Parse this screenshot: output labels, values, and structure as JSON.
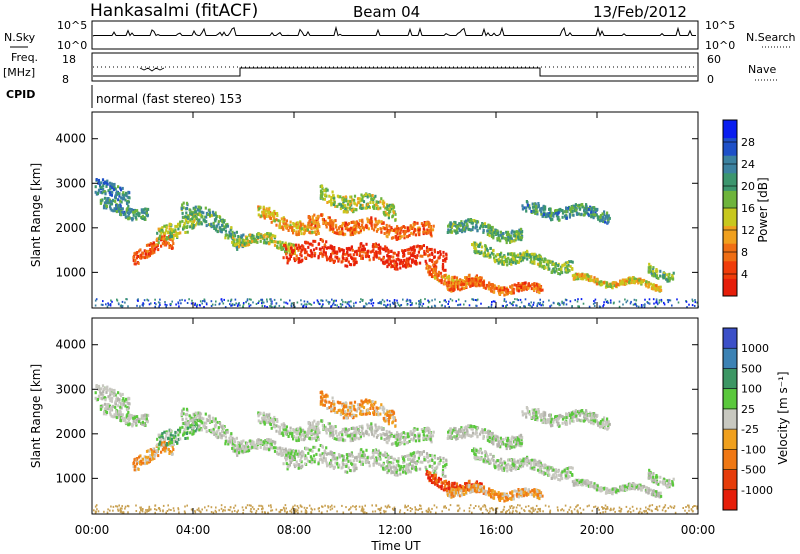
{
  "header": {
    "station": "Hankasalmi (fitACF)",
    "beam": "Beam 04",
    "date": "13/Feb/2012"
  },
  "noise_panel": {
    "left_label": "N.Sky",
    "ticks": [
      "10^5",
      "10^0"
    ],
    "right_label": "N.Search"
  },
  "freq_panel": {
    "left_label_top": "Freq.",
    "left_label_unit": "[MHz]",
    "left_ticks": [
      "18",
      "8"
    ],
    "right_ticks": [
      "60",
      "0"
    ],
    "right_label": "Nave"
  },
  "cpid_panel": {
    "left_label": "CPID",
    "program": "normal (fast stereo) 153"
  },
  "chart_data": [
    {
      "type": "heatmap",
      "title": "",
      "ylabel": "Slant Range [km]",
      "xlabel": "",
      "x_ticks": [
        "00:00",
        "04:00",
        "08:00",
        "12:00",
        "16:00",
        "20:00",
        "00:00"
      ],
      "y_ticks": [
        "1000",
        "2000",
        "3000",
        "4000"
      ],
      "ylim": [
        200,
        4600
      ],
      "colorbar": {
        "label": "Power [dB]",
        "ticks": [
          "4",
          "8",
          "12",
          "16",
          "20",
          "24",
          "28"
        ],
        "range": [
          0,
          32
        ],
        "colors": [
          "#0a1ef0",
          "#1e50c8",
          "#3c82a0",
          "#3c966e",
          "#6eb43c",
          "#c8c81e",
          "#f0a01e",
          "#f06e14",
          "#f03c0a",
          "#e61e0a"
        ]
      }
    },
    {
      "type": "heatmap",
      "title": "",
      "ylabel": "Slant Range [km]",
      "xlabel": "Time UT",
      "x_ticks": [
        "00:00",
        "04:00",
        "08:00",
        "12:00",
        "16:00",
        "20:00",
        "00:00"
      ],
      "y_ticks": [
        "1000",
        "2000",
        "3000",
        "4000"
      ],
      "ylim": [
        200,
        4600
      ],
      "colorbar": {
        "label": "Velocity [m s⁻¹]",
        "ticks": [
          "1000",
          "500",
          "100",
          "25",
          "-25",
          "-100",
          "-500",
          "-1000"
        ],
        "range": [
          -1000,
          1000
        ],
        "colors": [
          "#3c50c8",
          "#3c82b4",
          "#3c9664",
          "#5ac83c",
          "#c8c8c0",
          "#f0a01e",
          "#f07814",
          "#e63c0a",
          "#e61e0a"
        ]
      }
    }
  ]
}
